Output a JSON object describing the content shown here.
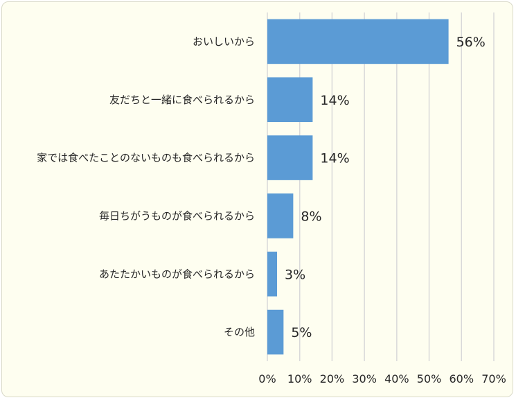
{
  "chart_data": {
    "type": "bar",
    "orientation": "horizontal",
    "categories": [
      "おいしいから",
      "友だちと一緒に食べられるから",
      "家では食べたことのないものも食べられるから",
      "毎日ちがうものが食べられるから",
      "あたたかいものが食べられるから",
      "その他"
    ],
    "values": [
      56,
      14,
      14,
      8,
      3,
      5
    ],
    "data_labels": [
      "56%",
      "14%",
      "14%",
      "8%",
      "3%",
      "5%"
    ],
    "x_ticks": [
      "0%",
      "10%",
      "20%",
      "30%",
      "40%",
      "50%",
      "60%",
      "70%"
    ],
    "xlim": [
      0,
      70
    ],
    "grid": true,
    "bar_color": "#5b9bd5",
    "background": "#fefef0"
  }
}
